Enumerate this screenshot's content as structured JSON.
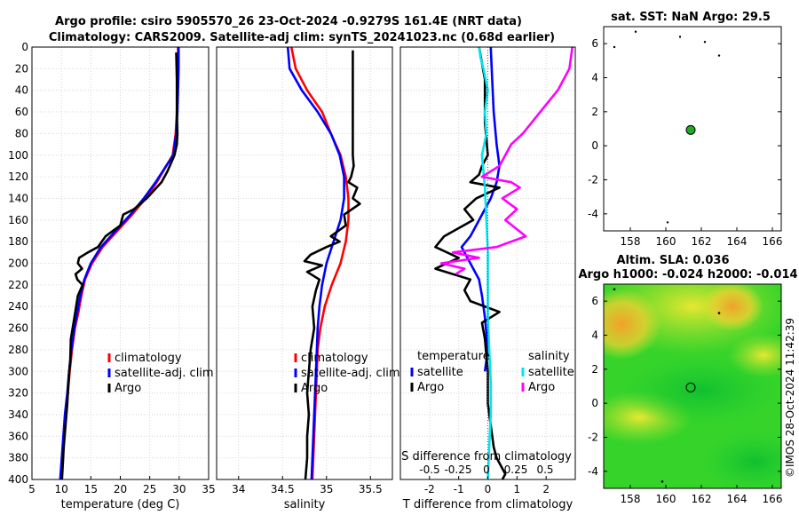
{
  "header": {
    "title_line1": "Argo profile: csiro 5905570_26 23-Oct-2024 -0.9279S 161.4E (NRT data)",
    "title_line2": "Climatology: CARS2009. Satellite-adj clim: synTS_20241023.nc (0.68d earlier)"
  },
  "watermark": "©IMOS 28-Oct-2024 11:42:39",
  "colors": {
    "climatology": "#ff0000",
    "satellite": "#0000ff",
    "argo": "#000000",
    "sat_salinity": "#00e5ee",
    "argo_salinity": "#ff00ff",
    "sst_dot": "#22aa22",
    "map_green": "#22cc22"
  },
  "chart_data": [
    {
      "type": "line",
      "id": "temperature",
      "xlabel": "temperature (deg C)",
      "ylabel": "",
      "xlim": [
        5,
        35
      ],
      "ylim": [
        400,
        0
      ],
      "xticks": [
        5,
        10,
        15,
        20,
        25,
        30,
        35
      ],
      "yticks": [
        0,
        20,
        40,
        60,
        80,
        100,
        120,
        140,
        160,
        180,
        200,
        220,
        240,
        260,
        280,
        300,
        320,
        340,
        360,
        380,
        400
      ],
      "legend": [
        "climatology",
        "satellite-adj. clim",
        "Argo"
      ],
      "series": [
        {
          "name": "climatology",
          "color": "#ff0000",
          "x": [
            29.8,
            29.8,
            29.7,
            29.6,
            29.4,
            28.9,
            27.8,
            26.2,
            24.3,
            22.0,
            19.5,
            17.0,
            15.2,
            14.0,
            13.4,
            12.9,
            12.3,
            11.8,
            11.4,
            11.1,
            10.7,
            10.3,
            9.9
          ],
          "y": [
            0,
            20,
            40,
            60,
            80,
            100,
            110,
            125,
            140,
            155,
            170,
            185,
            200,
            215,
            230,
            245,
            260,
            280,
            300,
            320,
            340,
            370,
            400
          ]
        },
        {
          "name": "satellite-adj. clim",
          "color": "#0000ff",
          "x": [
            29.9,
            29.9,
            29.8,
            29.7,
            29.5,
            29.0,
            27.8,
            26.0,
            24.0,
            21.7,
            19.2,
            16.7,
            15.0,
            13.9,
            13.2,
            12.7,
            12.2,
            11.7,
            11.3,
            11.0,
            10.6,
            10.2,
            9.8
          ],
          "y": [
            0,
            20,
            40,
            60,
            80,
            100,
            110,
            125,
            140,
            155,
            170,
            185,
            200,
            215,
            230,
            245,
            260,
            280,
            300,
            320,
            340,
            370,
            400
          ]
        },
        {
          "name": "Argo",
          "color": "#000000",
          "x": [
            29.5,
            29.6,
            29.6,
            29.7,
            29.6,
            29.2,
            28.0,
            27.0,
            24.5,
            22.3,
            20.5,
            20.0,
            17.5,
            16.2,
            14.5,
            13.0,
            12.8,
            13.5,
            12.4,
            12.7,
            13.6,
            12.8,
            12.2,
            11.6,
            11.5,
            11.2,
            11.0,
            10.7,
            10.4,
            10.2,
            10.1
          ],
          "y": [
            5,
            30,
            60,
            80,
            90,
            100,
            115,
            125,
            140,
            150,
            155,
            165,
            175,
            185,
            190,
            195,
            200,
            205,
            210,
            215,
            220,
            230,
            250,
            270,
            290,
            310,
            330,
            350,
            370,
            390,
            400
          ]
        }
      ]
    },
    {
      "type": "line",
      "id": "salinity",
      "xlabel": "salinity",
      "xlim": [
        33.75,
        35.75
      ],
      "ylim": [
        400,
        0
      ],
      "xticks": [
        34,
        34.5,
        35,
        35.5
      ],
      "yticks": [
        0,
        20,
        40,
        60,
        80,
        100,
        120,
        140,
        160,
        180,
        200,
        220,
        240,
        260,
        280,
        300,
        320,
        340,
        360,
        380,
        400
      ],
      "legend": [
        "climatology",
        "satellite-adj. clim",
        "Argo"
      ],
      "series": [
        {
          "name": "climatology",
          "color": "#ff0000",
          "x": [
            34.6,
            34.65,
            34.78,
            34.95,
            35.05,
            35.16,
            35.22,
            35.25,
            35.25,
            35.22,
            35.16,
            35.06,
            34.98,
            34.93,
            34.9,
            34.89,
            34.88,
            34.87,
            34.86,
            34.85,
            34.84
          ],
          "y": [
            0,
            20,
            40,
            60,
            80,
            100,
            120,
            140,
            160,
            180,
            200,
            220,
            240,
            260,
            280,
            300,
            320,
            340,
            360,
            380,
            400
          ]
        },
        {
          "name": "satellite-adj. clim",
          "color": "#0000ff",
          "x": [
            34.56,
            34.58,
            34.72,
            34.9,
            35.05,
            35.15,
            35.2,
            35.2,
            35.16,
            35.08,
            35.0,
            34.95,
            34.92,
            34.9,
            34.89,
            34.88,
            34.87,
            34.86,
            34.85,
            34.84,
            34.83
          ],
          "y": [
            0,
            20,
            40,
            60,
            80,
            100,
            120,
            140,
            160,
            180,
            200,
            220,
            240,
            260,
            280,
            300,
            320,
            340,
            360,
            380,
            400
          ]
        },
        {
          "name": "Argo",
          "color": "#000000",
          "x": [
            35.3,
            35.3,
            35.3,
            35.3,
            35.31,
            35.28,
            35.25,
            35.35,
            35.3,
            35.38,
            35.2,
            35.22,
            35.05,
            35.15,
            35.0,
            34.82,
            34.75,
            34.95,
            34.78,
            34.92,
            34.88,
            34.84,
            34.86,
            34.82,
            34.8,
            34.78,
            34.8,
            34.78,
            34.78,
            34.76
          ],
          "y": [
            3,
            40,
            80,
            100,
            110,
            120,
            125,
            130,
            140,
            145,
            155,
            165,
            175,
            180,
            185,
            192,
            198,
            202,
            208,
            215,
            225,
            240,
            260,
            280,
            300,
            320,
            340,
            360,
            380,
            400
          ]
        }
      ]
    },
    {
      "type": "line",
      "id": "difference",
      "xlabel": "T difference from climatology",
      "xlabel_top": "S difference from climatology",
      "xlim": [
        -3,
        3
      ],
      "ylim": [
        400,
        0
      ],
      "xticks": [
        -2,
        -1,
        0,
        1,
        2
      ],
      "s_xticks": [
        "-0.5",
        "-0.25",
        "0",
        "0.25",
        "0.5"
      ],
      "yticks": [
        0,
        20,
        40,
        60,
        80,
        100,
        120,
        140,
        160,
        180,
        200,
        220,
        240,
        260,
        280,
        300,
        320,
        340,
        360,
        380,
        400
      ],
      "legend_headers": [
        "temperature",
        "salinity"
      ],
      "legend": [
        "satellite",
        "Argo",
        "satellite",
        "Argo"
      ],
      "series": [
        {
          "name": "T satellite",
          "color": "#0000ff",
          "x": [
            0.1,
            0.15,
            0.2,
            0.3,
            0.4,
            0.3,
            0.1,
            -0.2,
            -0.4,
            -0.6,
            -0.9,
            -0.6,
            -0.3,
            -0.2,
            -0.1,
            0.0,
            -0.1
          ],
          "y": [
            0,
            30,
            60,
            90,
            110,
            125,
            140,
            155,
            165,
            175,
            185,
            200,
            215,
            230,
            250,
            280,
            300
          ]
        },
        {
          "name": "T Argo",
          "color": "#000000",
          "x": [
            -0.3,
            -0.1,
            -0.1,
            0.0,
            -0.2,
            -0.3,
            -0.6,
            0.4,
            -0.4,
            -0.8,
            -0.5,
            -1.5,
            -1.8,
            -1.0,
            -1.8,
            -0.6,
            -0.8,
            -0.6,
            0.4,
            -0.2,
            -0.1,
            0.0,
            0.0,
            0.1,
            0.2,
            0.3,
            0.6,
            0.5
          ],
          "y": [
            0,
            30,
            70,
            100,
            110,
            118,
            125,
            130,
            140,
            150,
            160,
            175,
            185,
            195,
            205,
            215,
            225,
            235,
            245,
            255,
            270,
            300,
            330,
            350,
            370,
            380,
            395,
            400
          ]
        },
        {
          "name": "S satellite",
          "color": "#00e5ee",
          "x": [
            -0.3,
            -0.25,
            -0.15,
            0.0,
            -0.1,
            -0.05,
            -0.2,
            -0.1,
            -0.05,
            0.0,
            0.0,
            0.0,
            0.05,
            0.1,
            0.1,
            0.05,
            0.0
          ],
          "y": [
            0,
            10,
            20,
            40,
            60,
            80,
            100,
            130,
            160,
            190,
            220,
            250,
            280,
            310,
            340,
            370,
            400
          ]
        },
        {
          "name": "S Argo",
          "color": "#ff00ff",
          "x": [
            2.9,
            2.8,
            2.4,
            1.8,
            1.2,
            0.8,
            0.6,
            0.4,
            -0.2,
            0.8,
            1.1,
            0.5,
            1.0,
            0.6,
            1.3,
            0.3,
            -1.2,
            -0.3,
            -1.6,
            -0.8,
            -1.1
          ],
          "y": [
            0,
            20,
            40,
            60,
            80,
            90,
            100,
            110,
            120,
            125,
            130,
            140,
            150,
            160,
            175,
            185,
            190,
            195,
            200,
            205,
            210
          ]
        }
      ]
    },
    {
      "type": "scatter",
      "id": "sst_map",
      "title": "sat. SST: NaN Argo: 29.5",
      "xlim": [
        156.5,
        166.5
      ],
      "ylim": [
        -5,
        7
      ],
      "xticks": [
        158,
        160,
        162,
        164,
        166
      ],
      "yticks": [
        6,
        4,
        2,
        0,
        -2,
        -4
      ],
      "points": [
        {
          "lon": 161.4,
          "lat": 0.93,
          "label": "Argo"
        }
      ]
    },
    {
      "type": "heatmap",
      "id": "sla_map",
      "title_line1": "Altim. SLA: 0.036",
      "title_line2": "Argo h1000: -0.024 h2000: -0.014",
      "xlim": [
        156.5,
        166.5
      ],
      "ylim": [
        -5,
        7
      ],
      "xticks": [
        158,
        160,
        162,
        164,
        166
      ],
      "yticks": [
        6,
        4,
        2,
        0,
        -2,
        -4
      ],
      "points": [
        {
          "lon": 161.4,
          "lat": 0.93,
          "label": "Argo"
        }
      ]
    }
  ]
}
